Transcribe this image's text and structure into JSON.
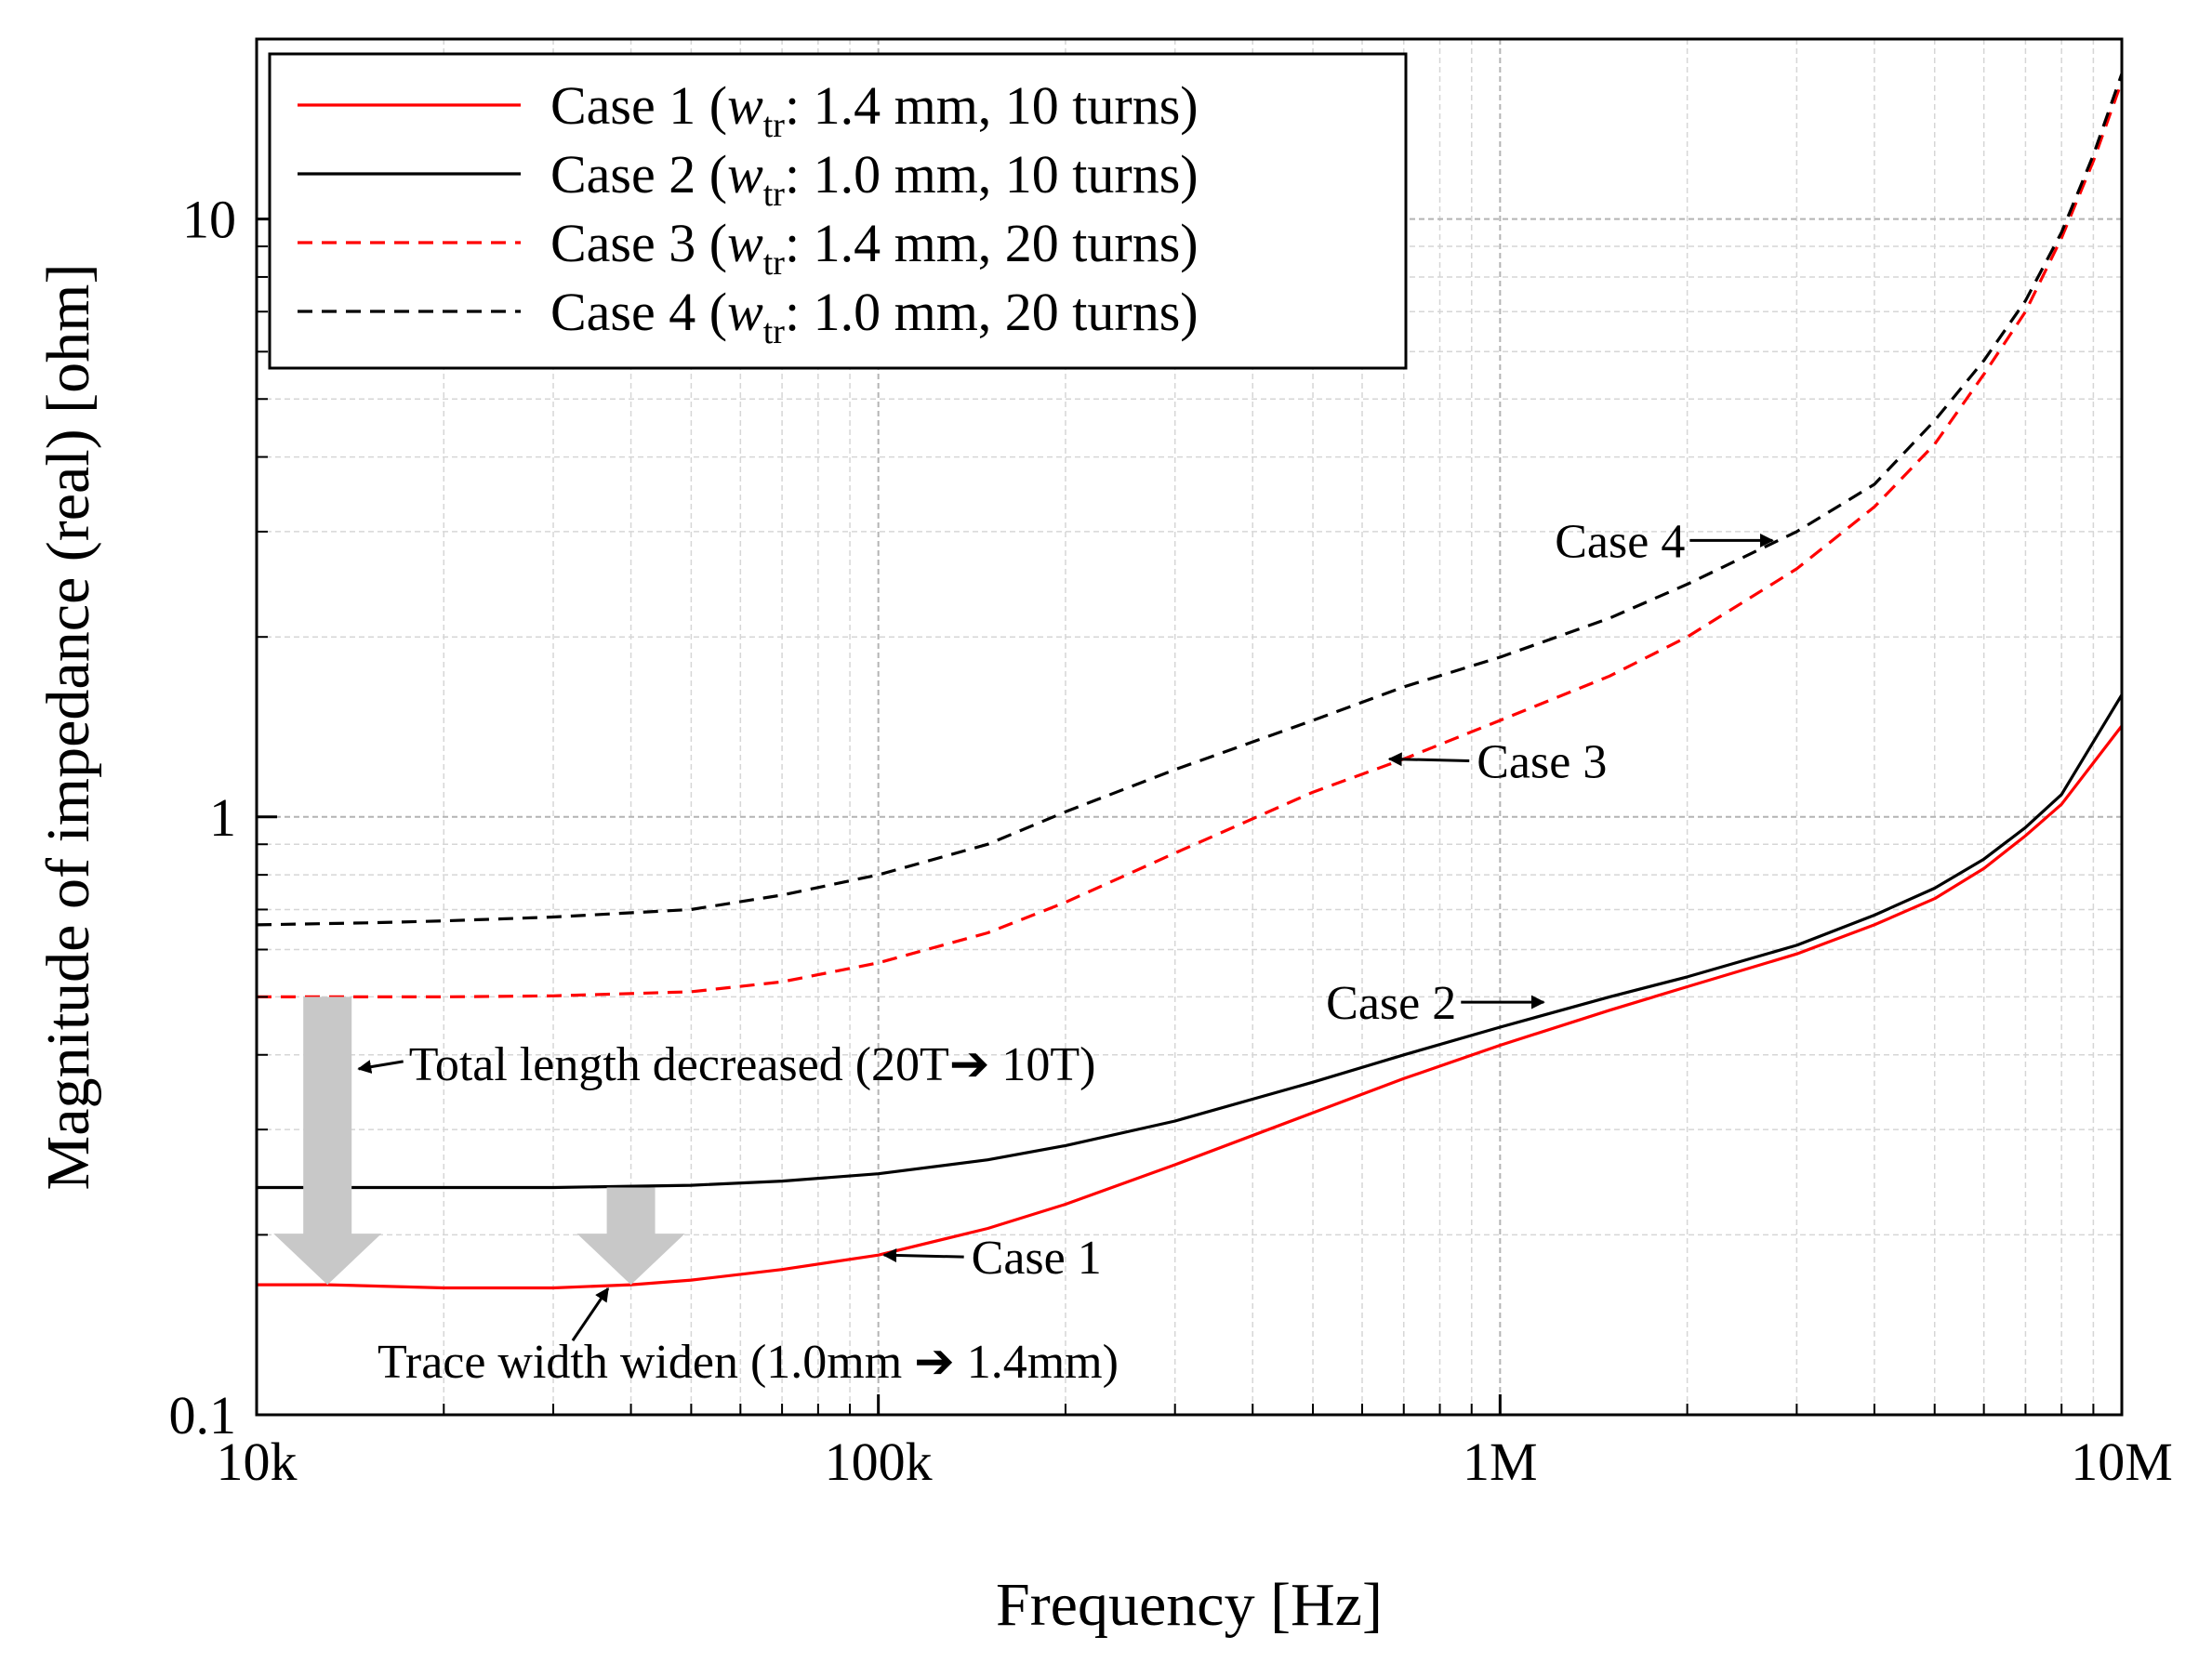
{
  "chart_data": {
    "type": "line",
    "title": "",
    "xlabel": "Frequency [Hz]",
    "ylabel": "Magnitude of impedance (real) [ohm]",
    "xscale": "log",
    "yscale": "log",
    "xlim": [
      10000,
      10000000
    ],
    "ylim": [
      0.1,
      20
    ],
    "grid": true,
    "legend_position": "top-left",
    "x_ticks": [
      {
        "value": 10000,
        "label": "10k"
      },
      {
        "value": 100000,
        "label": "100k"
      },
      {
        "value": 1000000,
        "label": "1M"
      },
      {
        "value": 10000000,
        "label": "10M"
      }
    ],
    "y_ticks": [
      {
        "value": 0.1,
        "label": "0.1"
      },
      {
        "value": 1,
        "label": "1"
      },
      {
        "value": 10,
        "label": "10"
      }
    ],
    "series": [
      {
        "name": "Case 1",
        "legend_label": {
          "prefix": "Case 1 (",
          "var": "w",
          "sub": "tr",
          "suffix": ": 1.4 mm, 10 turns)"
        },
        "color": "#ff0000",
        "dash": "solid",
        "x": [
          10000,
          13000,
          20000,
          30000,
          40000,
          50000,
          70000,
          100000,
          150000,
          200000,
          300000,
          500000,
          700000,
          1000000,
          1500000,
          2000000,
          3000000,
          4000000,
          5000000,
          6000000,
          7000000,
          8000000,
          10000000
        ],
        "values": [
          0.165,
          0.165,
          0.163,
          0.163,
          0.165,
          0.168,
          0.175,
          0.185,
          0.205,
          0.225,
          0.262,
          0.32,
          0.365,
          0.415,
          0.475,
          0.52,
          0.59,
          0.66,
          0.73,
          0.82,
          0.93,
          1.05,
          1.42
        ]
      },
      {
        "name": "Case 2",
        "legend_label": {
          "prefix": "Case 2 (",
          "var": "w",
          "sub": "tr",
          "suffix": ": 1.0 mm, 10 turns)"
        },
        "color": "#000000",
        "dash": "solid",
        "x": [
          10000,
          15000,
          20000,
          30000,
          50000,
          70000,
          100000,
          150000,
          200000,
          300000,
          500000,
          700000,
          1000000,
          1500000,
          2000000,
          3000000,
          4000000,
          5000000,
          6000000,
          7000000,
          8000000,
          10000000
        ],
        "values": [
          0.24,
          0.24,
          0.24,
          0.24,
          0.242,
          0.246,
          0.253,
          0.267,
          0.282,
          0.31,
          0.36,
          0.4,
          0.445,
          0.5,
          0.54,
          0.61,
          0.685,
          0.76,
          0.85,
          0.96,
          1.09,
          1.6
        ]
      },
      {
        "name": "Case 3",
        "legend_label": {
          "prefix": "Case 3 (",
          "var": "w",
          "sub": "tr",
          "suffix": ": 1.4 mm, 20 turns)"
        },
        "color": "#ff0000",
        "dash": "dashed",
        "x": [
          10000,
          15000,
          20000,
          30000,
          50000,
          70000,
          100000,
          150000,
          200000,
          300000,
          500000,
          700000,
          1000000,
          1500000,
          2000000,
          3000000,
          4000000,
          5000000,
          6000000,
          7000000,
          8000000,
          9000000,
          10000000
        ],
        "values": [
          0.5,
          0.5,
          0.5,
          0.502,
          0.51,
          0.53,
          0.57,
          0.64,
          0.72,
          0.87,
          1.1,
          1.25,
          1.45,
          1.72,
          2.0,
          2.6,
          3.3,
          4.2,
          5.5,
          7.0,
          9.3,
          12.5,
          17.0
        ]
      },
      {
        "name": "Case 4",
        "legend_label": {
          "prefix": "Case 4 (",
          "var": "w",
          "sub": "tr",
          "suffix": ": 1.0 mm, 20 turns)"
        },
        "color": "#000000",
        "dash": "dashed",
        "x": [
          10000,
          15000,
          20000,
          30000,
          50000,
          70000,
          100000,
          150000,
          200000,
          300000,
          500000,
          700000,
          1000000,
          1500000,
          2000000,
          3000000,
          4000000,
          5000000,
          6000000,
          7000000,
          8000000,
          9000000,
          10000000
        ],
        "values": [
          0.66,
          0.665,
          0.67,
          0.68,
          0.7,
          0.74,
          0.8,
          0.9,
          1.02,
          1.2,
          1.45,
          1.65,
          1.85,
          2.15,
          2.45,
          3.0,
          3.6,
          4.6,
          5.8,
          7.3,
          9.5,
          12.8,
          17.5
        ]
      }
    ],
    "annotations": [
      {
        "id": "case4",
        "text": "Case 4",
        "x": 2800000,
        "y": 2.9,
        "side": "left"
      },
      {
        "id": "case3",
        "text": "Case 3",
        "x": 650000,
        "y": 1.25,
        "side": "right"
      },
      {
        "id": "case2",
        "text": "Case 2",
        "x": 1200000,
        "y": 0.49,
        "side": "left"
      },
      {
        "id": "case1",
        "text": "Case 1",
        "x": 100000,
        "y": 0.185,
        "side": "right"
      },
      {
        "id": "total_length",
        "text": "Total length decreased (20T➔ 10T)",
        "x": 14000,
        "y": 0.39,
        "side": "right"
      },
      {
        "id": "trace_width",
        "text": "Trace width widen (1.0mm ➔ 1.4mm)",
        "x": 37000,
        "y": 0.165,
        "side": "below"
      }
    ],
    "shift_arrows": [
      {
        "id": "shift_total_length",
        "x": 13000,
        "from": 0.5,
        "to": 0.165,
        "label_ref": "total_length"
      },
      {
        "id": "shift_trace_width",
        "x": 40000,
        "from": 0.24,
        "to": 0.165,
        "label_ref": "trace_width"
      }
    ]
  }
}
